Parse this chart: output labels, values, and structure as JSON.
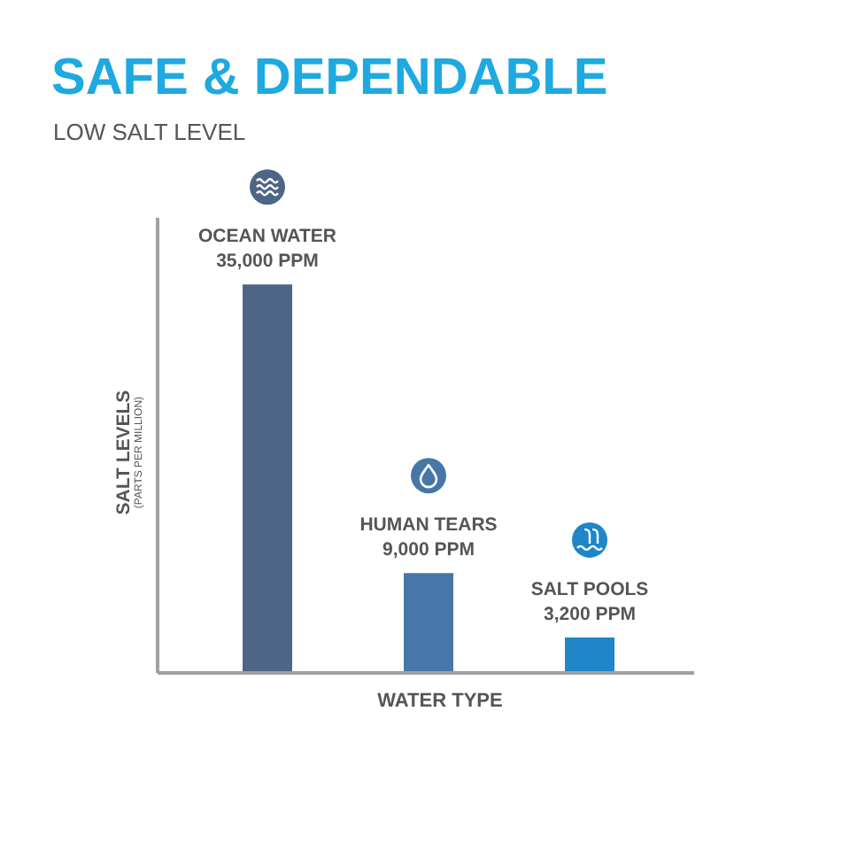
{
  "chart_data": {
    "type": "bar",
    "title": "SAFE & DEPENDABLE",
    "subtitle": "LOW SALT LEVEL",
    "xlabel": "WATER TYPE",
    "ylabel": "SALT LEVELS\n(PARTS PER MILLION)",
    "categories": [
      "OCEAN WATER",
      "HUMAN TEARS",
      "SALT POOLS"
    ],
    "values": [
      35000,
      9000,
      3200
    ],
    "value_labels": [
      "35,000 PPM",
      "9,000 PPM",
      "3,200 PPM"
    ],
    "colors": [
      "#4d6687",
      "#4677a8",
      "#1f86c8"
    ],
    "ylim": [
      0,
      41000
    ],
    "tick_labels": false
  }
}
